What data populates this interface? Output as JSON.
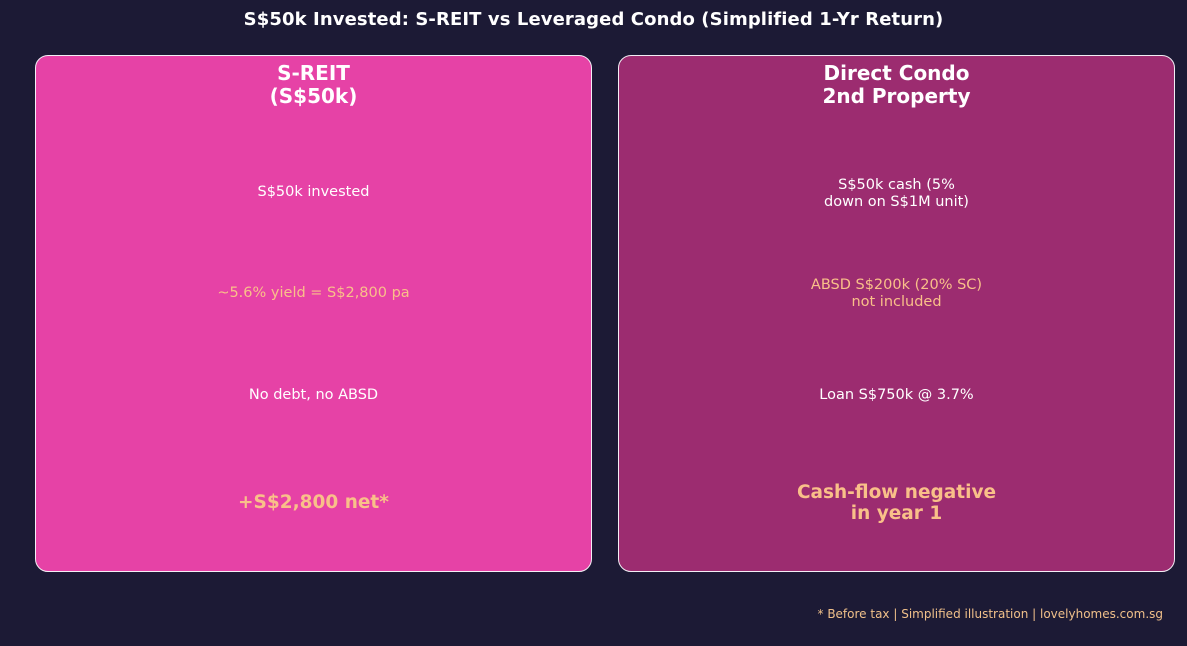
{
  "title": "S$50k Invested: S-REIT vs Leveraged Condo (Simplified 1-Yr Return)",
  "colors": {
    "background": "#1c1a35",
    "sreit_card": "#e642a6",
    "condo_card": "#9c2c70",
    "highlight_text": "#f9c089",
    "border": "#f3eef5"
  },
  "left_card": {
    "title": "S-REIT\n(S$50k)",
    "line1": "S$50k invested",
    "line2": "~5.6% yield = S$2,800 pa",
    "line3": "No debt, no ABSD",
    "result": "+S$2,800 net*"
  },
  "right_card": {
    "title": "Direct Condo\n2nd Property",
    "line1": "S$50k cash (5%\ndown on S$1M unit)",
    "line2": "ABSD S$200k (20% SC)\nnot included",
    "line3": "Loan S$750k @ 3.7%",
    "result": "Cash-flow negative\nin year 1"
  },
  "footer": "* Before tax | Simplified illustration | lovelyhomes.com.sg"
}
